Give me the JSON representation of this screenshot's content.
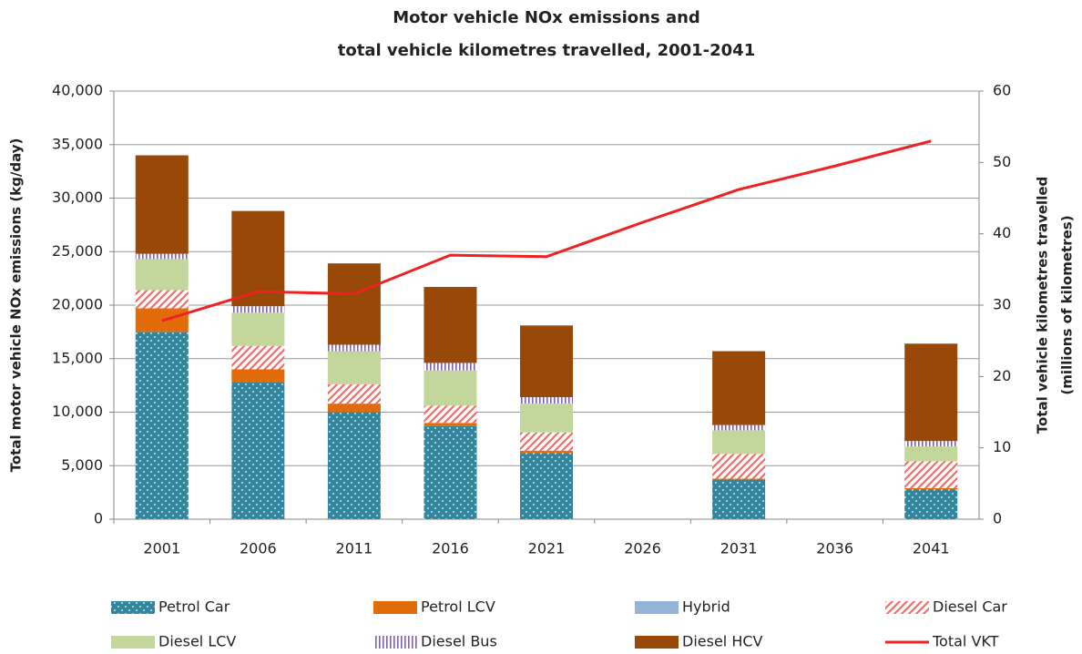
{
  "chart_data": {
    "type": "bar",
    "title": [
      "Motor vehicle NOx emissions and",
      "total vehicle kilometres travelled, 2001-2041"
    ],
    "ylabel": "Total motor vehicle NOx emissions (kg/day)",
    "y2label": [
      "Total vehicle kilometres travelled",
      "(millions of kilometres)"
    ],
    "categories": [
      "2001",
      "2006",
      "2011",
      "2016",
      "2021",
      "2026",
      "2031",
      "2036",
      "2041"
    ],
    "stacked": true,
    "series": [
      {
        "name": "Petrol Car",
        "color": "#31859c",
        "pattern": "dots",
        "values": [
          17500,
          12800,
          10000,
          8700,
          6200,
          null,
          3700,
          null,
          2800
        ]
      },
      {
        "name": "Petrol LCV",
        "color": "#e36c0a",
        "values": [
          2200,
          1200,
          800,
          300,
          200,
          null,
          100,
          null,
          100
        ]
      },
      {
        "name": "Hybrid",
        "color": "#95b3d7",
        "values": [
          0,
          0,
          0,
          0,
          0,
          null,
          0,
          null,
          0
        ]
      },
      {
        "name": "Diesel Car",
        "color": "#e6726e",
        "pattern": "diagonal",
        "values": [
          1700,
          2200,
          1800,
          1600,
          1700,
          null,
          2300,
          null,
          2500
        ]
      },
      {
        "name": "Diesel LCV",
        "color": "#c3d69b",
        "values": [
          2900,
          3100,
          3100,
          3300,
          2700,
          null,
          2200,
          null,
          1400
        ]
      },
      {
        "name": "Diesel Bus",
        "color": "#8064a2",
        "pattern": "vertical",
        "values": [
          500,
          600,
          600,
          700,
          600,
          null,
          500,
          null,
          500
        ]
      },
      {
        "name": "Diesel HCV",
        "color": "#984807",
        "values": [
          9200,
          8900,
          7600,
          7100,
          6700,
          null,
          6900,
          null,
          9100
        ]
      },
      {
        "name": "Total VKT",
        "color": "#ee2222",
        "type": "line",
        "axis": "y2",
        "values": [
          27.8,
          31.9,
          31.6,
          37.0,
          36.8,
          41.6,
          46.2,
          49.5,
          53.0
        ]
      }
    ],
    "ylim": [
      0,
      40000
    ],
    "yticks": [
      0,
      {
        "value": 5000,
        "label": "5,000"
      },
      {
        "value": 10000,
        "label": "10,000"
      },
      {
        "value": 15000,
        "label": "15,000"
      },
      {
        "value": 20000,
        "label": "20,000"
      },
      {
        "value": 25000,
        "label": "25,000"
      },
      {
        "value": 30000,
        "label": "30,000"
      },
      {
        "value": 35000,
        "label": "35,000"
      },
      {
        "value": 40000,
        "label": "40,000"
      }
    ],
    "y2lim": [
      0,
      60
    ],
    "y2ticks": [
      0,
      10,
      20,
      30,
      40,
      50,
      60
    ],
    "grid": true,
    "legend": "bottom"
  }
}
